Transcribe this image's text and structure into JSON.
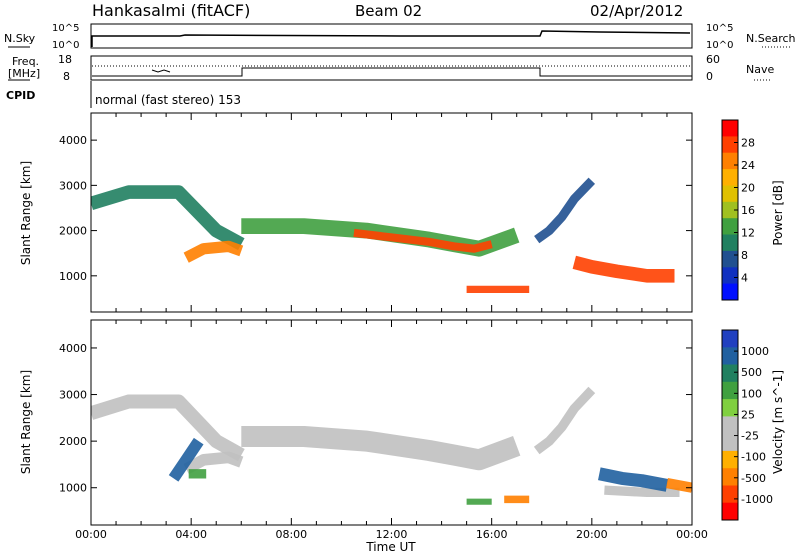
{
  "header": {
    "station": "Hankasalmi (fitACF)",
    "beam": "Beam 02",
    "date": "02/Apr/2012"
  },
  "status_panels": {
    "nsky_label": "N.Sky",
    "nsky_ticks": [
      "10^5",
      "10^0"
    ],
    "nsearch_label": "N.Search",
    "nsearch_ticks": [
      "10^5",
      "10^0"
    ],
    "freq_label": "Freq.",
    "freq_unit": "[MHz]",
    "freq_ticks": [
      "18",
      "8"
    ],
    "nave_label": "Nave",
    "nave_ticks": [
      "60",
      "0"
    ],
    "cpid_label": "CPID",
    "cpid_text": "normal (fast stereo) 153"
  },
  "colorbars": {
    "power": {
      "label": "Power [dB]",
      "ticks": [
        "28",
        "24",
        "20",
        "16",
        "12",
        "8",
        "4"
      ],
      "colors": [
        "#ff0000",
        "#ff4000",
        "#ff8000",
        "#ffb000",
        "#e0c000",
        "#a0c020",
        "#40a040",
        "#208060",
        "#205090",
        "#1030c0",
        "#0010ff"
      ]
    },
    "velocity": {
      "label": "Velocity [m s^-1]",
      "ticks": [
        "1000",
        "500",
        "100",
        "25",
        "-25",
        "-100",
        "-500",
        "-1000"
      ],
      "colors": [
        "#2040c0",
        "#2060a0",
        "#208060",
        "#40a040",
        "#80d040",
        "#c0c0c0",
        "#c0c0c0",
        "#ffb000",
        "#ff8000",
        "#ff4000",
        "#ff0000"
      ]
    }
  },
  "chart_data": [
    {
      "type": "heatmap",
      "name": "power",
      "ylabel": "Slant Range [km]",
      "ylim": [
        200,
        4600
      ],
      "yticks": [
        1000,
        2000,
        3000,
        4000
      ],
      "xlim": [
        0,
        24
      ],
      "bands": [
        {
          "x": [
            0,
            1.5,
            3.5,
            5.0,
            6.0
          ],
          "y": [
            2600,
            2850,
            2850,
            2000,
            1700
          ],
          "w": 300,
          "c": "#208060"
        },
        {
          "x": [
            3.8,
            4.5,
            5.5,
            6.0
          ],
          "y": [
            1400,
            1600,
            1650,
            1550
          ],
          "w": 250,
          "c": "#ff8000"
        },
        {
          "x": [
            6.0,
            8.5,
            11.0,
            13.5,
            14.5,
            15.5,
            17.0
          ],
          "y": [
            2100,
            2100,
            2000,
            1800,
            1700,
            1600,
            1900
          ],
          "w": 350,
          "c": "#40a040"
        },
        {
          "x": [
            10.5,
            12.0,
            13.5,
            14.5,
            15.3,
            16.0
          ],
          "y": [
            1950,
            1850,
            1750,
            1650,
            1600,
            1700
          ],
          "w": 180,
          "c": "#ff4000"
        },
        {
          "x": [
            15.0,
            17.5
          ],
          "y": [
            700,
            700
          ],
          "w": 160,
          "c": "#ff4000"
        },
        {
          "x": [
            17.8,
            18.3,
            18.8,
            19.3,
            20.0
          ],
          "y": [
            1800,
            2000,
            2300,
            2700,
            3100
          ],
          "w": 200,
          "c": "#205090"
        },
        {
          "x": [
            19.3,
            20.0,
            21.0,
            22.2,
            23.3
          ],
          "y": [
            1300,
            1200,
            1100,
            1000,
            1000
          ],
          "w": 300,
          "c": "#ff4000"
        }
      ]
    },
    {
      "type": "heatmap",
      "name": "velocity",
      "ylabel": "Slant Range [km]",
      "xlabel": "Time UT",
      "ylim": [
        200,
        4600
      ],
      "yticks": [
        1000,
        2000,
        3000,
        4000
      ],
      "xlim": [
        0,
        24
      ],
      "xticks": [
        "00:00",
        "04:00",
        "08:00",
        "12:00",
        "16:00",
        "20:00",
        "00:00"
      ],
      "bands": [
        {
          "x": [
            0,
            1.5,
            3.5,
            5.0,
            6.0
          ],
          "y": [
            2600,
            2850,
            2850,
            2000,
            1700
          ],
          "w": 300,
          "c": "#c0c0c0"
        },
        {
          "x": [
            3.8,
            4.5,
            5.5,
            6.0
          ],
          "y": [
            1400,
            1600,
            1650,
            1550
          ],
          "w": 250,
          "c": "#c0c0c0"
        },
        {
          "x": [
            6.0,
            8.5,
            11.0,
            13.5,
            14.5,
            15.5,
            17.0
          ],
          "y": [
            2100,
            2100,
            2000,
            1800,
            1700,
            1600,
            1900
          ],
          "w": 450,
          "c": "#c0c0c0"
        },
        {
          "x": [
            17.8,
            18.3,
            18.8,
            19.3,
            20.0
          ],
          "y": [
            1800,
            2000,
            2300,
            2700,
            3100
          ],
          "w": 200,
          "c": "#c0c0c0"
        },
        {
          "x": [
            20.5,
            22.2,
            23.5
          ],
          "y": [
            950,
            900,
            900
          ],
          "w": 200,
          "c": "#c0c0c0"
        },
        {
          "x": [
            3.3,
            3.8,
            4.3
          ],
          "y": [
            1200,
            1600,
            2000
          ],
          "w": 250,
          "c": "#2060a0"
        },
        {
          "x": [
            3.9,
            4.6
          ],
          "y": [
            1300,
            1300
          ],
          "w": 200,
          "c": "#40a040"
        },
        {
          "x": [
            15.0,
            16.0
          ],
          "y": [
            700,
            700
          ],
          "w": 130,
          "c": "#40a040"
        },
        {
          "x": [
            16.5,
            17.5
          ],
          "y": [
            750,
            750
          ],
          "w": 160,
          "c": "#ff8000"
        },
        {
          "x": [
            20.3,
            21.2,
            22.0,
            23.0
          ],
          "y": [
            1300,
            1200,
            1150,
            1050
          ],
          "w": 280,
          "c": "#2060a0"
        },
        {
          "x": [
            23.0,
            24.0
          ],
          "y": [
            1100,
            1000
          ],
          "w": 220,
          "c": "#ff8000"
        }
      ]
    }
  ]
}
